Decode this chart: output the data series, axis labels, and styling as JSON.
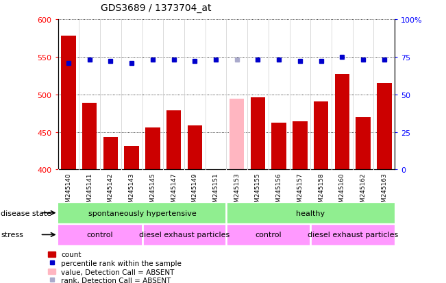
{
  "title": "GDS3689 / 1373704_at",
  "samples": [
    "GSM245140",
    "GSM245141",
    "GSM245142",
    "GSM245143",
    "GSM245145",
    "GSM245147",
    "GSM245149",
    "GSM245151",
    "GSM245153",
    "GSM245155",
    "GSM245156",
    "GSM245157",
    "GSM245158",
    "GSM245160",
    "GSM245162",
    "GSM245163"
  ],
  "count_values": [
    578,
    489,
    443,
    431,
    456,
    479,
    459,
    null,
    null,
    496,
    462,
    464,
    491,
    527,
    470,
    515
  ],
  "count_absent": [
    null,
    null,
    null,
    null,
    null,
    null,
    null,
    null,
    494,
    null,
    null,
    null,
    null,
    null,
    null,
    null
  ],
  "percentile_values": [
    71,
    73,
    72,
    71,
    73,
    73,
    72,
    73,
    null,
    73,
    73,
    72,
    72,
    75,
    73,
    73
  ],
  "percentile_absent": [
    null,
    null,
    null,
    null,
    null,
    null,
    null,
    null,
    73,
    null,
    null,
    null,
    null,
    null,
    null,
    null
  ],
  "ylim_left": [
    400,
    600
  ],
  "ylim_right": [
    0,
    100
  ],
  "yticks_left": [
    400,
    450,
    500,
    550,
    600
  ],
  "yticks_right": [
    0,
    25,
    50,
    75,
    100
  ],
  "bar_color_normal": "#CC0000",
  "bar_color_absent": "#FFB6C1",
  "dot_color_normal": "#0000CC",
  "dot_color_absent": "#AAAACC",
  "ds_color": "#90EE90",
  "stress_color": "#FF99FF",
  "bg_color": "#E8E8E8",
  "disease_state_label": "disease state",
  "stress_label": "stress"
}
